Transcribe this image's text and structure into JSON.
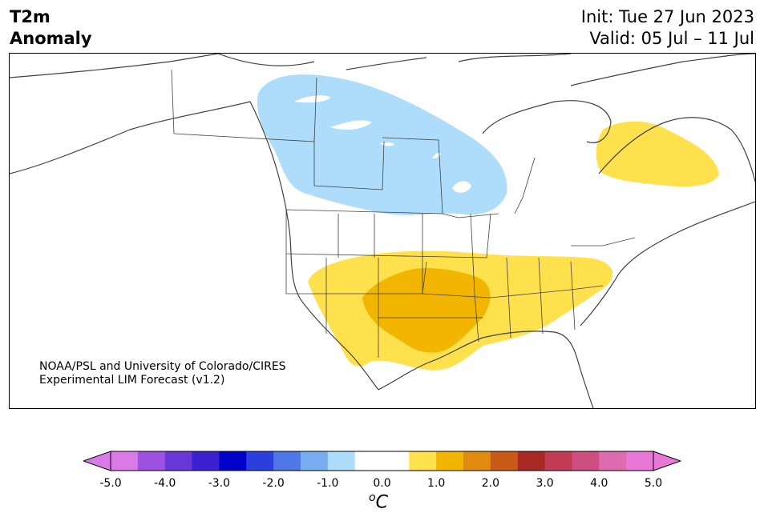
{
  "header": {
    "title_line1": "T2m",
    "title_line2": "Anomaly",
    "init": "Init: Tue 27 Jun 2023",
    "valid": "Valid: 05 Jul – 11 Jul"
  },
  "credit": {
    "line1": "NOAA/PSL and University of Colorado/CIRES",
    "line2": "Experimental LIM Forecast (v1.2)"
  },
  "colorbar": {
    "tick_labels": [
      "-5.0",
      "-4.0",
      "-3.0",
      "-2.0",
      "-1.0",
      "0.0",
      "1.0",
      "2.0",
      "3.0",
      "4.0",
      "5.0"
    ],
    "unit_base": "C",
    "unit_sup": "o",
    "colors": [
      "#d97ae6",
      "#9c52de",
      "#6a38d8",
      "#3a20cf",
      "#0000cc",
      "#2a3fdb",
      "#4f77e5",
      "#78aef0",
      "#aedcfb",
      "#ffffff",
      "#ffffff",
      "#ffe04d",
      "#f2b600",
      "#e08a10",
      "#c85a18",
      "#a82a25",
      "#c03c55",
      "#cc4f80",
      "#dd6bb0",
      "#e877d6"
    ],
    "extend_min_color": "#d97ae6",
    "extend_max_color": "#e877d6"
  },
  "map_colors": {
    "cold_fill": "#aedcfb",
    "warm_light": "#ffe04d",
    "warm_dark": "#f2b600",
    "border": "#404040"
  }
}
